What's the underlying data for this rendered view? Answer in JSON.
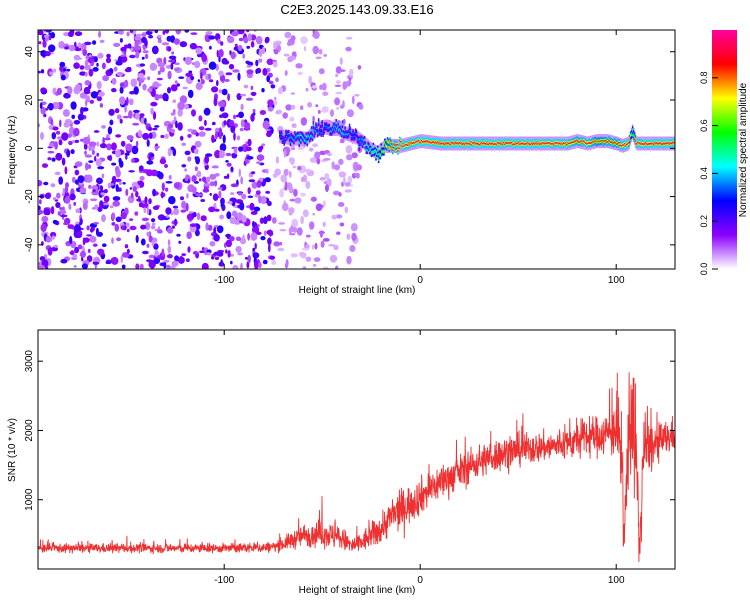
{
  "title": "C2E3.2025.143.09.33.E16",
  "chart_data": [
    {
      "type": "heatmap",
      "xlabel": "Height of straight line (km)",
      "ylabel": "Frequency (Hz)",
      "xlim": [
        -195,
        130
      ],
      "ylim": [
        -50,
        49
      ],
      "xticks": [
        -100,
        0,
        100
      ],
      "yticks": [
        -40,
        -20,
        0,
        20,
        40
      ],
      "grid": false,
      "colorbar": {
        "label": "Normalized spectral amplitude",
        "range": [
          0.0,
          1.0
        ],
        "ticks": [
          0.0,
          0.2,
          0.4,
          0.6,
          0.8
        ],
        "tick_labels": [
          "0.0",
          "0.2",
          "0.4",
          "0.6",
          "0.8"
        ],
        "colors": [
          "#ffffff",
          "#8b00ff",
          "#0000ff",
          "#00ffff",
          "#00ff00",
          "#ffff00",
          "#ff0000",
          "#ff00a0"
        ]
      },
      "regions": [
        {
          "x": [
            -195,
            -75
          ],
          "desc": "dense noise, amplitude 0.1-0.25"
        },
        {
          "x": [
            -75,
            -30
          ],
          "desc": "sparse noise, amplitude 0.03-0.1"
        }
      ],
      "trace": {
        "x": [
          -72,
          -65,
          -58,
          -54,
          -50,
          -46,
          -42,
          -38,
          -34,
          -30,
          -26,
          -22,
          -18,
          -14,
          -10,
          -5,
          0,
          10,
          20,
          40,
          60,
          75,
          80,
          85,
          90,
          95,
          100,
          103,
          106,
          108,
          110,
          115,
          130
        ],
        "y": [
          5,
          4,
          4,
          7,
          9,
          8,
          8,
          6,
          5,
          3,
          0,
          -2,
          1,
          1,
          1,
          2,
          3,
          2,
          2,
          2,
          2,
          2,
          3,
          2,
          3,
          3,
          2,
          1,
          2,
          7,
          2,
          2,
          2
        ],
        "amplitude": [
          0.35,
          0.4,
          0.45,
          0.4,
          0.35,
          0.4,
          0.45,
          0.4,
          0.35,
          0.4,
          0.5,
          0.55,
          0.7,
          0.85,
          0.9,
          0.9,
          0.92,
          0.92,
          0.92,
          0.92,
          0.92,
          0.9,
          0.85,
          0.9,
          0.8,
          0.85,
          0.85,
          0.9,
          0.9,
          0.5,
          0.9,
          0.92,
          0.92
        ]
      }
    },
    {
      "type": "line",
      "xlabel": "Height of straight line (km)",
      "ylabel": "SNR (10 * v/v)",
      "xlim": [
        -195,
        130
      ],
      "ylim": [
        0,
        3450
      ],
      "xticks": [
        -100,
        0,
        100
      ],
      "yticks": [
        1000,
        2000,
        3000
      ],
      "grid": false,
      "series": [
        {
          "color": "#ee3030",
          "x": [
            -195,
            -150,
            -100,
            -80,
            -75,
            -70,
            -60,
            -50,
            -40,
            -35,
            -30,
            -20,
            -15,
            -10,
            0,
            10,
            20,
            30,
            40,
            50,
            60,
            70,
            80,
            85,
            90,
            95,
            100,
            102,
            103,
            104,
            106,
            108,
            110,
            112,
            114,
            116,
            120,
            130
          ],
          "values": [
            300,
            300,
            300,
            310,
            320,
            360,
            480,
            520,
            440,
            330,
            380,
            580,
            750,
            850,
            1050,
            1250,
            1400,
            1550,
            1650,
            1720,
            1750,
            1780,
            1850,
            1900,
            1920,
            1950,
            2000,
            1800,
            1100,
            250,
            1900,
            2300,
            1700,
            250,
            1800,
            1700,
            1800,
            1950
          ],
          "noise": [
            60,
            60,
            60,
            70,
            70,
            90,
            150,
            180,
            160,
            120,
            140,
            200,
            240,
            260,
            240,
            230,
            220,
            220,
            220,
            210,
            200,
            200,
            230,
            250,
            260,
            280,
            350,
            600,
            700,
            350,
            700,
            900,
            700,
            300,
            600,
            400,
            250,
            220
          ]
        }
      ]
    }
  ]
}
